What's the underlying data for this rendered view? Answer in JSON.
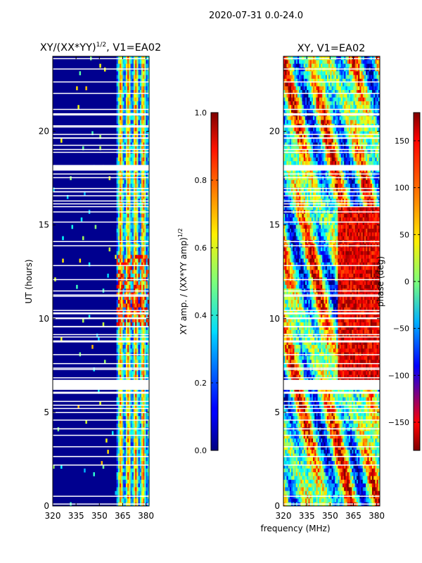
{
  "figure_title": "2020-07-31 0.0-24.0",
  "colors": {
    "background_blue": "#00008f",
    "gap_white": "#ffffff"
  },
  "chart_data": [
    {
      "type": "heatmap",
      "title_main": "XY/(XX*YY)",
      "title_exponent": "1/2",
      "title_suffix": ", V1=EA02",
      "xlabel": "",
      "ylabel": "UT (hours)",
      "xlim": [
        320,
        382
      ],
      "ylim": [
        0,
        24
      ],
      "xticks": [
        320,
        335,
        350,
        365,
        380
      ],
      "yticks": [
        0,
        5,
        10,
        15,
        20
      ],
      "colorbar": {
        "label_main": "XY amp. / (XX*YY amp)",
        "label_exponent": "1/2",
        "range": [
          0.0,
          1.0
        ],
        "ticks": [
          "0.0",
          "0.2",
          "0.4",
          "0.6",
          "0.8",
          "1.0"
        ],
        "tick_values": [
          0.0,
          0.2,
          0.4,
          0.6,
          0.8,
          1.0
        ]
      }
    },
    {
      "type": "heatmap",
      "title": "XY, V1=EA02",
      "xlabel": "frequency (MHz)",
      "ylabel": "",
      "xlim": [
        320,
        382
      ],
      "ylim": [
        0,
        24
      ],
      "xticks": [
        320,
        335,
        350,
        365,
        380
      ],
      "yticks": [
        0,
        5,
        10,
        15,
        20
      ],
      "colorbar": {
        "label": "phase (deg)",
        "range": [
          -180,
          180
        ],
        "ticks": [
          "150",
          "100",
          "50",
          "0",
          "−50",
          "−100",
          "−150"
        ],
        "tick_values": [
          150,
          100,
          50,
          0,
          -50,
          -100,
          -150
        ]
      }
    }
  ],
  "data_gaps_hours": [
    [
      6.2,
      6.7
    ],
    [
      17.9,
      18.2
    ]
  ]
}
